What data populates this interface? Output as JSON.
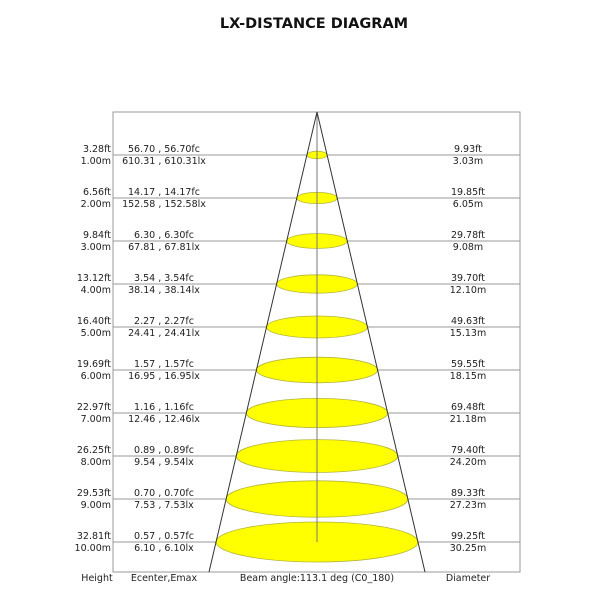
{
  "title": "LX-DISTANCE DIAGRAM",
  "beam_fill_color": "#ffff00",
  "rows": [
    {
      "height_ft": "3.28ft",
      "height_m": "1.00m",
      "e_fc": "56.70 , 56.70fc",
      "e_lx": "610.31 , 610.31lx",
      "dia_ft": "9.93ft",
      "dia_m": "3.03m"
    },
    {
      "height_ft": "6.56ft",
      "height_m": "2.00m",
      "e_fc": "14.17 , 14.17fc",
      "e_lx": "152.58 , 152.58lx",
      "dia_ft": "19.85ft",
      "dia_m": "6.05m"
    },
    {
      "height_ft": "9.84ft",
      "height_m": "3.00m",
      "e_fc": "6.30 , 6.30fc",
      "e_lx": "67.81 , 67.81lx",
      "dia_ft": "29.78ft",
      "dia_m": "9.08m"
    },
    {
      "height_ft": "13.12ft",
      "height_m": "4.00m",
      "e_fc": "3.54 , 3.54fc",
      "e_lx": "38.14 , 38.14lx",
      "dia_ft": "39.70ft",
      "dia_m": "12.10m"
    },
    {
      "height_ft": "16.40ft",
      "height_m": "5.00m",
      "e_fc": "2.27 , 2.27fc",
      "e_lx": "24.41 , 24.41lx",
      "dia_ft": "49.63ft",
      "dia_m": "15.13m"
    },
    {
      "height_ft": "19.69ft",
      "height_m": "6.00m",
      "e_fc": "1.57 , 1.57fc",
      "e_lx": "16.95 , 16.95lx",
      "dia_ft": "59.55ft",
      "dia_m": "18.15m"
    },
    {
      "height_ft": "22.97ft",
      "height_m": "7.00m",
      "e_fc": "1.16 , 1.16fc",
      "e_lx": "12.46 , 12.46lx",
      "dia_ft": "69.48ft",
      "dia_m": "21.18m"
    },
    {
      "height_ft": "26.25ft",
      "height_m": "8.00m",
      "e_fc": "0.89 , 0.89fc",
      "e_lx": "9.54 , 9.54lx",
      "dia_ft": "79.40ft",
      "dia_m": "24.20m"
    },
    {
      "height_ft": "29.53ft",
      "height_m": "9.00m",
      "e_fc": "0.70 , 0.70fc",
      "e_lx": "7.53 , 7.53lx",
      "dia_ft": "89.33ft",
      "dia_m": "27.23m"
    },
    {
      "height_ft": "32.81ft",
      "height_m": "10.00m",
      "e_fc": "0.57 , 0.57fc",
      "e_lx": "6.10 , 6.10lx",
      "dia_ft": "99.25ft",
      "dia_m": "30.25m"
    }
  ],
  "footer": {
    "height_label": "Height",
    "e_label": "Ecenter,Emax",
    "beam_label": "Beam angle:113.1 deg (C0_180)",
    "diameter_label": "Diameter"
  }
}
